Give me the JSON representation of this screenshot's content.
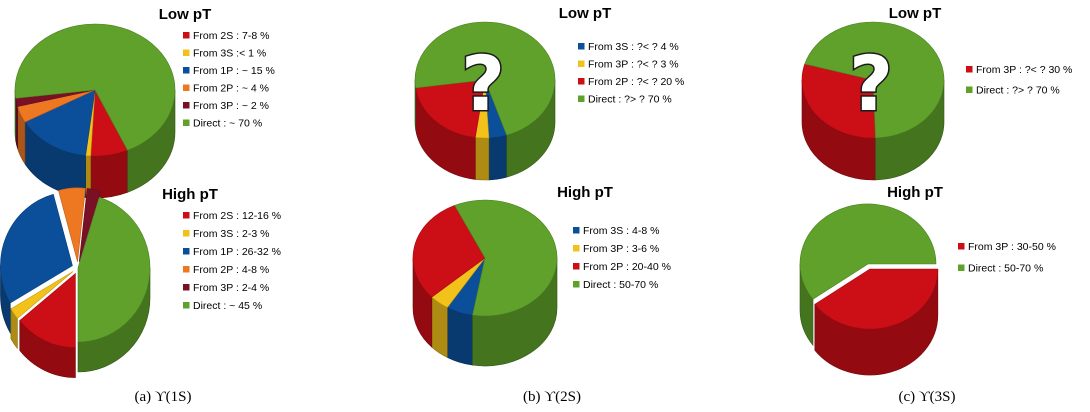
{
  "colors": {
    "from_2s": "#cc0e16",
    "from_3s": "#f2c21a",
    "from_1p": "#0b4f9a",
    "from_2p": "#ee7722",
    "from_3p_dark": "#7a1025",
    "from_3p_red": "#cc0e16",
    "direct": "#5fa12a"
  },
  "captions": [
    "(a)  ϒ(1S)",
    "(b)  ϒ(2S)",
    "(c)  ϒ(3S)"
  ],
  "chart_data": [
    {
      "type": "pie",
      "panel": "a",
      "title": "Low pT",
      "legend": [
        {
          "label": "From 2S : 7-8 %",
          "value": 7.5,
          "color": "#cc0e16"
        },
        {
          "label": "From 3S :< 1 %",
          "value": 1,
          "color": "#f2c21a"
        },
        {
          "label": "From 1P : ~ 15 %",
          "value": 15,
          "color": "#0b4f9a"
        },
        {
          "label": "From 2P : ~ 4 %",
          "value": 4,
          "color": "#ee7722"
        },
        {
          "label": "From 3P : ~ 2 %",
          "value": 2,
          "color": "#7a1025"
        },
        {
          "label": "Direct :  ~ 70 %",
          "value": 70,
          "color": "#5fa12a"
        }
      ]
    },
    {
      "type": "pie",
      "panel": "b",
      "title": "Low pT",
      "question_mark": "?",
      "legend": [
        {
          "label": "From 3S : ?< ? 4  %",
          "value": 4,
          "color": "#0b4f9a"
        },
        {
          "label": "From 3P : ?< ? 3 %",
          "value": 3,
          "color": "#f2c21a"
        },
        {
          "label": "From 2P : ?< ? 20 %",
          "value": 20,
          "color": "#cc0e16"
        },
        {
          "label": "Direct : ?> ? 70 %",
          "value": 70,
          "color": "#5fa12a"
        }
      ]
    },
    {
      "type": "pie",
      "panel": "c",
      "title": "Low pT",
      "question_mark": "?",
      "legend": [
        {
          "label": "From 3P : ?< ? 30 %",
          "value": 30,
          "color": "#cc0e16"
        },
        {
          "label": "Direct : ?> ? 70 %",
          "value": 70,
          "color": "#5fa12a"
        }
      ]
    },
    {
      "type": "pie",
      "panel": "a",
      "title": "High pT",
      "legend": [
        {
          "label": "From 2S : 12-16 %",
          "value": 14,
          "color": "#cc0e16"
        },
        {
          "label": "From 3S : 2-3 %",
          "value": 2.5,
          "color": "#f2c21a"
        },
        {
          "label": "From 1P : 26-32 %",
          "value": 29,
          "color": "#0b4f9a"
        },
        {
          "label": "From 2P : 4-8 %",
          "value": 6,
          "color": "#ee7722"
        },
        {
          "label": "From 3P : 2-4 %",
          "value": 3,
          "color": "#7a1025"
        },
        {
          "label": "Direct :  ~ 45 %",
          "value": 45,
          "color": "#5fa12a"
        }
      ]
    },
    {
      "type": "pie",
      "panel": "b",
      "title": "High pT",
      "legend": [
        {
          "label": "From 3S : 4-8  %",
          "value": 6,
          "color": "#0b4f9a"
        },
        {
          "label": "From 3P :  3-6 %",
          "value": 4.5,
          "color": "#f2c21a"
        },
        {
          "label": "From 2P : 20-40 %",
          "value": 30,
          "color": "#cc0e16"
        },
        {
          "label": "Direct :    50-70 %",
          "value": 60,
          "color": "#5fa12a"
        }
      ]
    },
    {
      "type": "pie",
      "panel": "c",
      "title": "High pT",
      "legend": [
        {
          "label": "From 3P :  30-50 %",
          "value": 40,
          "color": "#cc0e16"
        },
        {
          "label": "Direct :   50-70 %",
          "value": 60,
          "color": "#5fa12a"
        }
      ]
    }
  ]
}
